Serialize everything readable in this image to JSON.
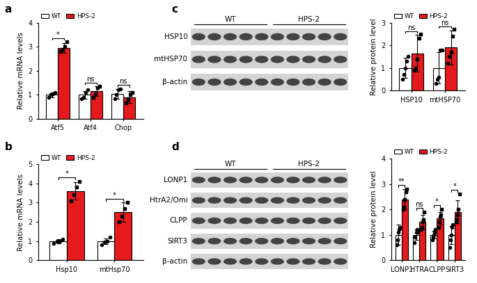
{
  "chart_data": [
    {
      "panel": "a",
      "type": "bar",
      "y_label": "Relative mRNA levels",
      "categories": [
        "Atf5",
        "Atf4",
        "Chop"
      ],
      "series": [
        {
          "name": "WT",
          "color": "#ffffff",
          "marker": "o",
          "values": [
            1.0,
            1.0,
            1.05
          ],
          "errors": [
            0.1,
            0.15,
            0.2
          ],
          "points": [
            [
              0.9,
              1.0,
              1.05,
              1.1
            ],
            [
              0.85,
              0.9,
              1.1,
              1.2
            ],
            [
              0.85,
              1.0,
              1.2,
              1.25
            ]
          ]
        },
        {
          "name": "HPS-2",
          "color": "#e41a1c",
          "marker": "s",
          "values": [
            2.95,
            1.15,
            0.9
          ],
          "errors": [
            0.2,
            0.2,
            0.25
          ],
          "points": [
            [
              2.8,
              2.9,
              3.0,
              3.2
            ],
            [
              0.9,
              1.05,
              1.3,
              1.35
            ],
            [
              0.65,
              0.8,
              1.0,
              1.1
            ]
          ]
        }
      ],
      "significance": [
        "*",
        "ns",
        "ns"
      ],
      "ylim": [
        0,
        4
      ],
      "yticks": [
        0,
        1,
        2,
        3,
        4
      ],
      "legend": "upper left"
    },
    {
      "panel": "b",
      "type": "bar",
      "y_label": "Relative mRNA levels",
      "categories": [
        "Hsp10",
        "mtHsp70"
      ],
      "series": [
        {
          "name": "WT",
          "color": "#ffffff",
          "marker": "o",
          "values": [
            1.0,
            1.0
          ],
          "errors": [
            0.1,
            0.15
          ],
          "points": [
            [
              0.9,
              1.0,
              1.0,
              1.1
            ],
            [
              0.8,
              0.95,
              1.0,
              1.2
            ]
          ]
        },
        {
          "name": "HPS-2",
          "color": "#e41a1c",
          "marker": "s",
          "values": [
            3.6,
            2.5
          ],
          "errors": [
            0.45,
            0.5
          ],
          "points": [
            [
              3.1,
              3.4,
              3.8,
              4.1
            ],
            [
              2.0,
              2.3,
              2.7,
              3.0
            ]
          ]
        }
      ],
      "significance": [
        "*",
        "*"
      ],
      "ylim": [
        0,
        5
      ],
      "yticks": [
        0,
        1,
        2,
        3,
        4,
        5
      ],
      "legend": "upper left"
    },
    {
      "panel": "c",
      "type": "bar",
      "y_label": "Relative protein level",
      "categories": [
        "HSP10",
        "mtHSP70"
      ],
      "series": [
        {
          "name": "WT",
          "color": "#ffffff",
          "marker": "o",
          "values": [
            1.0,
            1.0
          ],
          "errors": [
            0.45,
            0.7
          ],
          "points": [
            [
              0.5,
              0.7,
              1.0,
              1.3,
              1.5
            ],
            [
              0.3,
              0.5,
              0.6,
              1.8,
              1.8
            ]
          ]
        },
        {
          "name": "HPS-2",
          "color": "#e41a1c",
          "marker": "s",
          "values": [
            1.65,
            1.9
          ],
          "errors": [
            0.8,
            0.75
          ],
          "points": [
            [
              0.9,
              1.0,
              1.4,
              2.3,
              2.5
            ],
            [
              1.2,
              1.5,
              1.7,
              2.4,
              2.7
            ]
          ]
        }
      ],
      "significance": [
        "ns",
        "ns"
      ],
      "ylim": [
        0,
        3
      ],
      "yticks": [
        0,
        1,
        2,
        3
      ],
      "legend": "upper left"
    },
    {
      "panel": "d",
      "type": "bar",
      "y_label": "Relative protein level",
      "categories": [
        "LONP1",
        "HTRA",
        "CLPP",
        "SIRT3"
      ],
      "series": [
        {
          "name": "WT",
          "color": "#ffffff",
          "marker": "o",
          "values": [
            1.0,
            1.0,
            1.0,
            1.0
          ],
          "errors": [
            0.4,
            0.2,
            0.15,
            0.35
          ],
          "points": [
            [
              0.6,
              0.8,
              1.1,
              1.2,
              1.3
            ],
            [
              0.7,
              0.9,
              1.1,
              1.2,
              1.1
            ],
            [
              0.8,
              0.9,
              1.0,
              1.1,
              1.2
            ],
            [
              0.5,
              0.8,
              1.0,
              1.3,
              1.4
            ]
          ]
        },
        {
          "name": "HPS-2",
          "color": "#e41a1c",
          "marker": "s",
          "values": [
            2.4,
            1.5,
            1.65,
            1.9
          ],
          "errors": [
            0.4,
            0.3,
            0.25,
            0.45
          ],
          "points": [
            [
              2.0,
              2.1,
              2.4,
              2.7,
              2.8
            ],
            [
              1.2,
              1.3,
              1.5,
              1.6,
              1.9
            ],
            [
              1.3,
              1.5,
              1.7,
              1.8,
              2.0
            ],
            [
              1.5,
              1.6,
              1.8,
              2.0,
              2.6
            ]
          ]
        }
      ],
      "significance": [
        "**",
        "ns",
        "*",
        "*"
      ],
      "ylim": [
        0,
        4
      ],
      "yticks": [
        0,
        1,
        2,
        3,
        4
      ],
      "legend": "upper left"
    }
  ],
  "blots": [
    {
      "panel": "c",
      "groups": [
        {
          "name": "WT",
          "lanes": 5
        },
        {
          "name": "HPS-2",
          "lanes": 5
        }
      ],
      "rows": [
        "HSP10",
        "mtHSP70",
        "β-actin"
      ]
    },
    {
      "panel": "d",
      "groups": [
        {
          "name": "WT",
          "lanes": 5
        },
        {
          "name": "HPS-2",
          "lanes": 5
        }
      ],
      "rows": [
        "LONP1",
        "HtrA2/Omi",
        "CLPP",
        "SIRT3",
        "β-actin"
      ]
    }
  ]
}
